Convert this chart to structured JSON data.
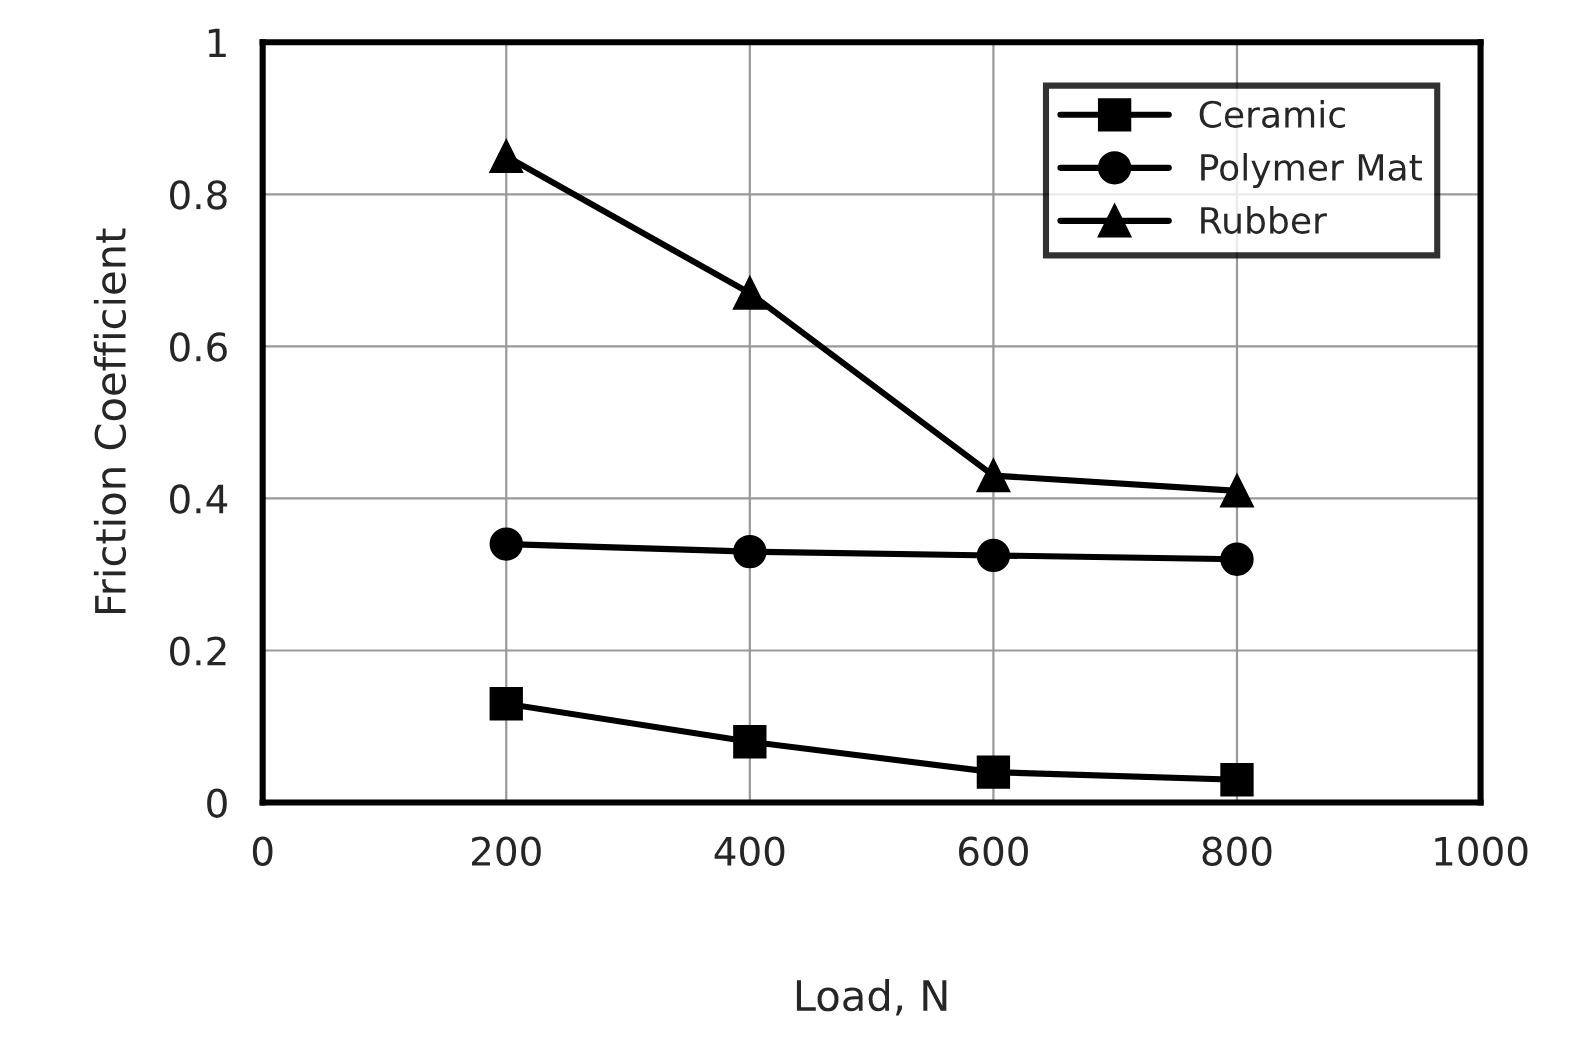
{
  "chart_data": {
    "type": "line",
    "xlabel": "Load, N",
    "ylabel": "Friction Coefficient",
    "x": [
      200,
      400,
      600,
      800
    ],
    "series": [
      {
        "name": "Ceramic",
        "color": "#000000",
        "marker": "square",
        "values": [
          0.13,
          0.08,
          0.04,
          0.03
        ]
      },
      {
        "name": "Polymer Mat",
        "color": "#000000",
        "marker": "circle",
        "values": [
          0.34,
          0.33,
          0.325,
          0.32
        ]
      },
      {
        "name": "Rubber",
        "color": "#000000",
        "marker": "triangle",
        "values": [
          0.85,
          0.67,
          0.43,
          0.41
        ]
      }
    ],
    "xlim": [
      0,
      1000
    ],
    "xticks": [
      0,
      200,
      400,
      600,
      800,
      1000
    ],
    "ylim": [
      0,
      1
    ],
    "yticks": [
      0,
      0.2,
      0.4,
      0.6,
      0.8,
      1
    ],
    "grid": true,
    "legend": "top right"
  }
}
